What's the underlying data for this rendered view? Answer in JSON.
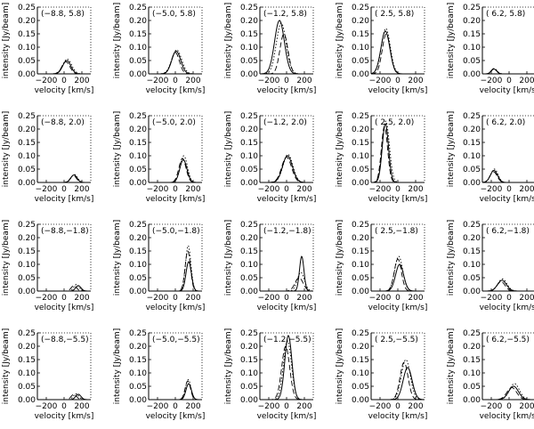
{
  "chart_data": {
    "type": "line",
    "layout": "grid of spectra, 4 rows x 5 columns",
    "xlabel": "velocity [km/s]",
    "ylabel": "intensity [Jy/beam]",
    "xlim": [
      -300,
      300
    ],
    "ylim": [
      0,
      0.25
    ],
    "xticks": [
      -200,
      0,
      200
    ],
    "xtick_labels": [
      "−200",
      "0",
      "200"
    ],
    "yticks": [
      0,
      0.05,
      0.1,
      0.15,
      0.2,
      0.25
    ],
    "ytick_labels": [
      "0.00",
      "0.05",
      "0.10",
      "0.15",
      "0.20",
      "0.25"
    ],
    "line_styles": [
      "solid",
      "dashed",
      "dotted"
    ],
    "panels": [
      {
        "label": "(−8.8, 5.8)",
        "series": [
          {
            "style": "solid",
            "center": 30,
            "width": 45,
            "peak": 0.05
          },
          {
            "style": "dashed",
            "center": 20,
            "width": 45,
            "peak": 0.045
          },
          {
            "style": "dotted",
            "center": 35,
            "width": 50,
            "peak": 0.055
          }
        ]
      },
      {
        "label": "(−5.0, 5.8)",
        "series": [
          {
            "style": "solid",
            "center": 10,
            "width": 50,
            "peak": 0.085
          },
          {
            "style": "dashed",
            "center": 0,
            "width": 45,
            "peak": 0.08
          },
          {
            "style": "dotted",
            "center": 15,
            "width": 55,
            "peak": 0.09
          }
        ]
      },
      {
        "label": "(−1.2, 5.8)",
        "series": [
          {
            "style": "solid",
            "center": -80,
            "width": 55,
            "peak": 0.2
          },
          {
            "style": "dashed",
            "center": -30,
            "width": 45,
            "peak": 0.15
          },
          {
            "style": "dotted",
            "center": -60,
            "width": 55,
            "peak": 0.19
          }
        ]
      },
      {
        "label": "( 2.5, 5.8)",
        "series": [
          {
            "style": "solid",
            "center": -140,
            "width": 50,
            "peak": 0.16
          },
          {
            "style": "dashed",
            "center": -130,
            "width": 45,
            "peak": 0.15
          },
          {
            "style": "dotted",
            "center": -135,
            "width": 50,
            "peak": 0.17
          }
        ]
      },
      {
        "label": "( 6.2, 5.8)",
        "series": [
          {
            "style": "solid",
            "center": -170,
            "width": 30,
            "peak": 0.018
          },
          {
            "style": "dashed",
            "center": -170,
            "width": 30,
            "peak": 0.02
          },
          {
            "style": "dotted",
            "center": -165,
            "width": 30,
            "peak": 0.02
          }
        ]
      },
      {
        "label": "(−8.8, 2.0)",
        "series": [
          {
            "style": "solid",
            "center": 110,
            "width": 35,
            "peak": 0.028
          },
          {
            "style": "dashed",
            "center": 105,
            "width": 35,
            "peak": 0.025
          },
          {
            "style": "dotted",
            "center": 115,
            "width": 35,
            "peak": 0.03
          }
        ]
      },
      {
        "label": "(−5.0, 2.0)",
        "series": [
          {
            "style": "solid",
            "center": 90,
            "width": 40,
            "peak": 0.085
          },
          {
            "style": "dashed",
            "center": 80,
            "width": 40,
            "peak": 0.09
          },
          {
            "style": "dotted",
            "center": 95,
            "width": 40,
            "peak": 0.1
          }
        ]
      },
      {
        "label": "(−1.2, 2.0)",
        "series": [
          {
            "style": "solid",
            "center": 10,
            "width": 55,
            "peak": 0.1
          },
          {
            "style": "dashed",
            "center": 0,
            "width": 55,
            "peak": 0.095
          },
          {
            "style": "dotted",
            "center": 15,
            "width": 55,
            "peak": 0.105
          }
        ]
      },
      {
        "label": "( 2.5, 2.0)",
        "series": [
          {
            "style": "solid",
            "center": -140,
            "width": 35,
            "peak": 0.22
          },
          {
            "style": "dashed",
            "center": -150,
            "width": 35,
            "peak": 0.21
          },
          {
            "style": "dotted",
            "center": -135,
            "width": 40,
            "peak": 0.23
          }
        ]
      },
      {
        "label": "( 6.2, 2.0)",
        "series": [
          {
            "style": "solid",
            "center": -170,
            "width": 40,
            "peak": 0.045
          },
          {
            "style": "dashed",
            "center": -175,
            "width": 40,
            "peak": 0.04
          },
          {
            "style": "dotted",
            "center": -165,
            "width": 40,
            "peak": 0.05
          }
        ]
      },
      {
        "label": "(−8.8,−1.8)",
        "series": [
          {
            "style": "solid",
            "center": 160,
            "width": 30,
            "peak": 0.02
          },
          {
            "style": "dashed",
            "center": 110,
            "width": 30,
            "peak": 0.02
          },
          {
            "style": "dotted",
            "center": 140,
            "width": 30,
            "peak": 0.025
          }
        ]
      },
      {
        "label": "(−5.0,−1.8)",
        "series": [
          {
            "style": "solid",
            "center": 150,
            "width": 30,
            "peak": 0.11
          },
          {
            "style": "dashed",
            "center": 140,
            "width": 30,
            "peak": 0.15
          },
          {
            "style": "dotted",
            "center": 145,
            "width": 30,
            "peak": 0.17
          }
        ]
      },
      {
        "label": "(−1.2,−1.8)",
        "series": [
          {
            "style": "solid",
            "center": 170,
            "width": 25,
            "peak": 0.13
          },
          {
            "style": "dashed",
            "center": 140,
            "width": 45,
            "peak": 0.05
          },
          {
            "style": "dotted",
            "center": 160,
            "width": 40,
            "peak": 0.07
          }
        ]
      },
      {
        "label": "( 2.5,−1.8)",
        "series": [
          {
            "style": "solid",
            "center": 20,
            "width": 45,
            "peak": 0.1
          },
          {
            "style": "dashed",
            "center": 0,
            "width": 40,
            "peak": 0.12
          },
          {
            "style": "dotted",
            "center": 10,
            "width": 45,
            "peak": 0.13
          }
        ]
      },
      {
        "label": "( 6.2,−1.8)",
        "series": [
          {
            "style": "solid",
            "center": -80,
            "width": 50,
            "peak": 0.04
          },
          {
            "style": "dashed",
            "center": -90,
            "width": 45,
            "peak": 0.035
          },
          {
            "style": "dotted",
            "center": -75,
            "width": 50,
            "peak": 0.045
          }
        ]
      },
      {
        "label": "(−8.8,−5.5)",
        "series": [
          {
            "style": "solid",
            "center": 160,
            "width": 30,
            "peak": 0.02
          },
          {
            "style": "dashed",
            "center": 110,
            "width": 30,
            "peak": 0.02
          },
          {
            "style": "dotted",
            "center": 135,
            "width": 30,
            "peak": 0.022
          }
        ]
      },
      {
        "label": "(−5.0,−5.5)",
        "series": [
          {
            "style": "solid",
            "center": 150,
            "width": 30,
            "peak": 0.06
          },
          {
            "style": "dashed",
            "center": 140,
            "width": 30,
            "peak": 0.07
          },
          {
            "style": "dotted",
            "center": 145,
            "width": 30,
            "peak": 0.075
          }
        ]
      },
      {
        "label": "(−1.2,−5.5)",
        "series": [
          {
            "style": "solid",
            "center": 20,
            "width": 40,
            "peak": 0.24
          },
          {
            "style": "dashed",
            "center": -10,
            "width": 45,
            "peak": 0.2
          },
          {
            "style": "dotted",
            "center": 10,
            "width": 45,
            "peak": 0.22
          }
        ]
      },
      {
        "label": "( 2.5,−5.5)",
        "series": [
          {
            "style": "solid",
            "center": 110,
            "width": 50,
            "peak": 0.12
          },
          {
            "style": "dashed",
            "center": 70,
            "width": 45,
            "peak": 0.14
          },
          {
            "style": "dotted",
            "center": 90,
            "width": 50,
            "peak": 0.15
          }
        ]
      },
      {
        "label": "( 6.2,−5.5)",
        "series": [
          {
            "style": "solid",
            "center": 50,
            "width": 55,
            "peak": 0.05
          },
          {
            "style": "dashed",
            "center": 30,
            "width": 55,
            "peak": 0.045
          },
          {
            "style": "dotted",
            "center": 60,
            "width": 55,
            "peak": 0.06
          }
        ]
      }
    ]
  }
}
